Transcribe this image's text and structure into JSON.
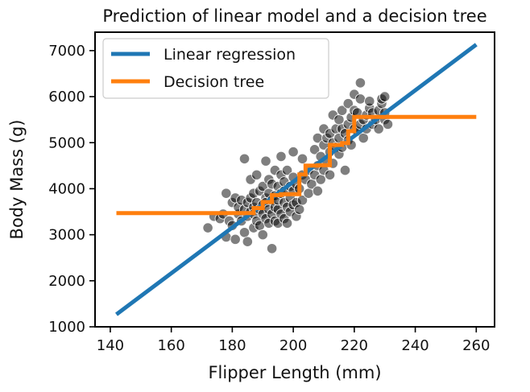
{
  "chart_data": {
    "type": "scatter",
    "title": "Prediction of linear model and a decision tree",
    "xlabel": "Flipper Length (mm)",
    "ylabel": "Body Mass (g)",
    "xlim": [
      135,
      266
    ],
    "ylim": [
      1000,
      7400
    ],
    "xticks": [
      140,
      160,
      180,
      200,
      220,
      240,
      260
    ],
    "yticks": [
      1000,
      2000,
      3000,
      4000,
      5000,
      6000,
      7000
    ],
    "grid": false,
    "legend_position": "top-left",
    "colors": {
      "points": "#000000",
      "linear": "#1f77b4",
      "tree": "#ff7f0e"
    },
    "series": [
      {
        "name": "Linear regression",
        "kind": "line",
        "color": "#1f77b4",
        "x": [
          142,
          260
        ],
        "y": [
          1270,
          7130
        ]
      },
      {
        "name": "Decision tree",
        "kind": "step",
        "color": "#ff7f0e",
        "x": [
          142,
          187,
          187,
          190,
          190,
          193,
          193,
          196,
          196,
          202,
          202,
          204,
          204,
          208,
          208,
          212,
          212,
          216,
          216,
          218,
          218,
          220,
          220,
          260
        ],
        "y": [
          3470,
          3470,
          3580,
          3580,
          3710,
          3710,
          3860,
          3860,
          3880,
          3880,
          4310,
          4310,
          4500,
          4500,
          4510,
          4510,
          4950,
          4950,
          4990,
          4990,
          5250,
          5250,
          5560,
          5560
        ]
      }
    ],
    "points": [
      [
        172,
        3150
      ],
      [
        174,
        3400
      ],
      [
        176,
        3350
      ],
      [
        177,
        3450
      ],
      [
        178,
        3900
      ],
      [
        178,
        2950
      ],
      [
        179,
        3300
      ],
      [
        180,
        3700
      ],
      [
        180,
        3200
      ],
      [
        181,
        3800
      ],
      [
        181,
        2900
      ],
      [
        182,
        3450
      ],
      [
        182,
        3600
      ],
      [
        183,
        3750
      ],
      [
        183,
        3300
      ],
      [
        184,
        3050
      ],
      [
        184,
        3550
      ],
      [
        184,
        4650
      ],
      [
        185,
        3700
      ],
      [
        185,
        3400
      ],
      [
        185,
        2850
      ],
      [
        186,
        3500
      ],
      [
        186,
        3800
      ],
      [
        186,
        4200
      ],
      [
        187,
        3600
      ],
      [
        187,
        3150
      ],
      [
        187,
        3900
      ],
      [
        187,
        3450
      ],
      [
        188,
        3300
      ],
      [
        188,
        3700
      ],
      [
        188,
        4300
      ],
      [
        189,
        3550
      ],
      [
        189,
        3200
      ],
      [
        189,
        3950
      ],
      [
        190,
        3650
      ],
      [
        190,
        3450
      ],
      [
        190,
        4050
      ],
      [
        190,
        3000
      ],
      [
        191,
        3800
      ],
      [
        191,
        3350
      ],
      [
        191,
        4600
      ],
      [
        191,
        3700
      ],
      [
        192,
        3250
      ],
      [
        192,
        3900
      ],
      [
        192,
        3550
      ],
      [
        192,
        4200
      ],
      [
        193,
        2700
      ],
      [
        193,
        3750
      ],
      [
        193,
        3450
      ],
      [
        193,
        4100
      ],
      [
        194,
        3600
      ],
      [
        194,
        3300
      ],
      [
        194,
        4400
      ],
      [
        194,
        3850
      ],
      [
        195,
        3550
      ],
      [
        195,
        4050
      ],
      [
        195,
        3250
      ],
      [
        195,
        3750
      ],
      [
        196,
        3900
      ],
      [
        196,
        3450
      ],
      [
        196,
        4300
      ],
      [
        196,
        4700
      ],
      [
        197,
        3700
      ],
      [
        197,
        3350
      ],
      [
        197,
        4150
      ],
      [
        197,
        3950
      ],
      [
        198,
        3600
      ],
      [
        198,
        4400
      ],
      [
        198,
        3250
      ],
      [
        199,
        3800
      ],
      [
        199,
        4050
      ],
      [
        199,
        3500
      ],
      [
        200,
        3950
      ],
      [
        200,
        4250
      ],
      [
        200,
        3650
      ],
      [
        200,
        4800
      ],
      [
        201,
        3700
      ],
      [
        201,
        4100
      ],
      [
        201,
        3400
      ],
      [
        202,
        4000
      ],
      [
        202,
        3550
      ],
      [
        203,
        4300
      ],
      [
        203,
        3750
      ],
      [
        203,
        4650
      ],
      [
        204,
        4200
      ],
      [
        205,
        4400
      ],
      [
        205,
        3900
      ],
      [
        206,
        4100
      ],
      [
        207,
        4300
      ],
      [
        207,
        4850
      ],
      [
        208,
        4500
      ],
      [
        208,
        3950
      ],
      [
        208,
        5100
      ],
      [
        209,
        4700
      ],
      [
        209,
        4200
      ],
      [
        210,
        4400
      ],
      [
        210,
        5300
      ],
      [
        210,
        4950
      ],
      [
        211,
        4600
      ],
      [
        211,
        5100
      ],
      [
        212,
        4800
      ],
      [
        212,
        5200
      ],
      [
        212,
        4300
      ],
      [
        213,
        5000
      ],
      [
        213,
        5600
      ],
      [
        213,
        4550
      ],
      [
        214,
        4900
      ],
      [
        214,
        5300
      ],
      [
        215,
        5100
      ],
      [
        215,
        5500
      ],
      [
        215,
        4750
      ],
      [
        216,
        5300
      ],
      [
        216,
        4900
      ],
      [
        216,
        5700
      ],
      [
        217,
        5200
      ],
      [
        217,
        4400
      ],
      [
        218,
        5400
      ],
      [
        218,
        5050
      ],
      [
        218,
        5850
      ],
      [
        219,
        5550
      ],
      [
        219,
        4950
      ],
      [
        220,
        5300
      ],
      [
        220,
        5700
      ],
      [
        220,
        6050
      ],
      [
        221,
        5250
      ],
      [
        221,
        5650
      ],
      [
        222,
        5400
      ],
      [
        222,
        6300
      ],
      [
        222,
        5950
      ],
      [
        223,
        5500
      ],
      [
        223,
        5100
      ],
      [
        224,
        5600
      ],
      [
        224,
        5300
      ],
      [
        225,
        5750
      ],
      [
        225,
        5900
      ],
      [
        226,
        5400
      ],
      [
        226,
        5650
      ],
      [
        227,
        5500
      ],
      [
        228,
        5700
      ],
      [
        228,
        5300
      ],
      [
        229,
        5850
      ],
      [
        229,
        5950
      ],
      [
        230,
        5500
      ],
      [
        230,
        6000
      ],
      [
        230,
        5650
      ],
      [
        231,
        5400
      ]
    ]
  }
}
